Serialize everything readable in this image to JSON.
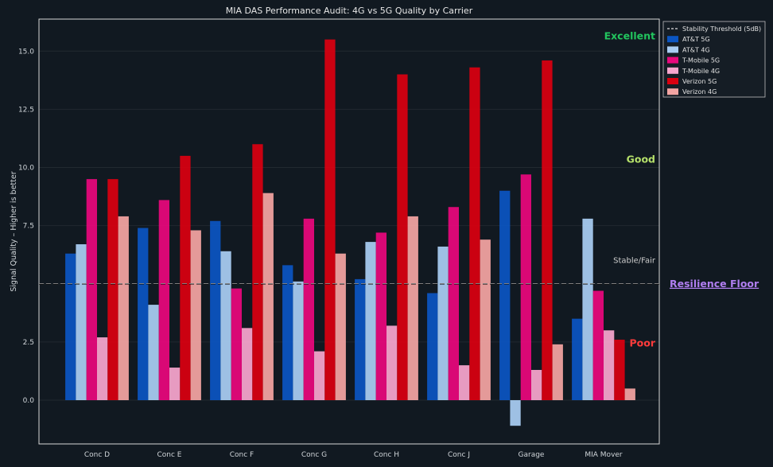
{
  "chart_data": {
    "type": "bar",
    "title": "MIA DAS Performance Audit: 4G vs 5G Quality by Carrier",
    "xlabel": "",
    "ylabel": "Signal Quality – Higher is better",
    "ylim": [
      -1.0,
      16.5
    ],
    "yticks": [
      0.0,
      2.5,
      5.0,
      7.5,
      10.0,
      12.5,
      15.0
    ],
    "ytick_labels": [
      "0.0",
      "2.5",
      "",
      "7.5",
      "10.0",
      "12.5",
      "15.0"
    ],
    "grid": true,
    "legend_position": "top-right",
    "categories": [
      "Conc D",
      "Conc E",
      "Conc F",
      "Conc G",
      "Conc H",
      "Conc J",
      "Garage",
      "MIA Mover"
    ],
    "series": [
      {
        "name": "AT&T 5G",
        "color": "#0b55c2",
        "values": [
          6.3,
          7.4,
          7.7,
          5.8,
          5.2,
          4.6,
          9.0,
          3.5
        ]
      },
      {
        "name": "AT&T 4G",
        "color": "#a9cdf3",
        "values": [
          6.7,
          4.1,
          6.4,
          5.1,
          6.8,
          6.6,
          -1.1,
          7.8
        ]
      },
      {
        "name": "T-Mobile 5G",
        "color": "#e8087c",
        "values": [
          9.5,
          8.6,
          4.8,
          7.8,
          7.2,
          8.3,
          9.7,
          4.7
        ]
      },
      {
        "name": "T-Mobile 4G",
        "color": "#f7a6cd",
        "values": [
          2.7,
          1.4,
          3.1,
          2.1,
          3.2,
          1.5,
          1.3,
          3.0
        ]
      },
      {
        "name": "Verizon 5G",
        "color": "#d90010",
        "values": [
          9.5,
          10.5,
          11.0,
          15.5,
          14.0,
          14.3,
          14.6,
          2.6
        ]
      },
      {
        "name": "Verizon 4G",
        "color": "#f4a5a3",
        "values": [
          7.9,
          7.3,
          8.9,
          6.3,
          7.9,
          6.9,
          2.4,
          0.5
        ]
      }
    ],
    "threshold": {
      "name": "Stability Threshold (5dB)",
      "value": 5.0
    },
    "zones": [
      {
        "label": "Excellent",
        "y": 15.5,
        "color": "#22c55e"
      },
      {
        "label": "Good",
        "y": 10.2,
        "color": "#b5e06a"
      },
      {
        "label": "Stable/Fair",
        "y": 5.9,
        "color": "#cccccc"
      },
      {
        "label": "Poor",
        "y": 2.3,
        "color": "#ff3b3b"
      }
    ],
    "annotation": {
      "label": "Resilience Floor",
      "y": 5.0,
      "color": "#b07ef0"
    }
  }
}
